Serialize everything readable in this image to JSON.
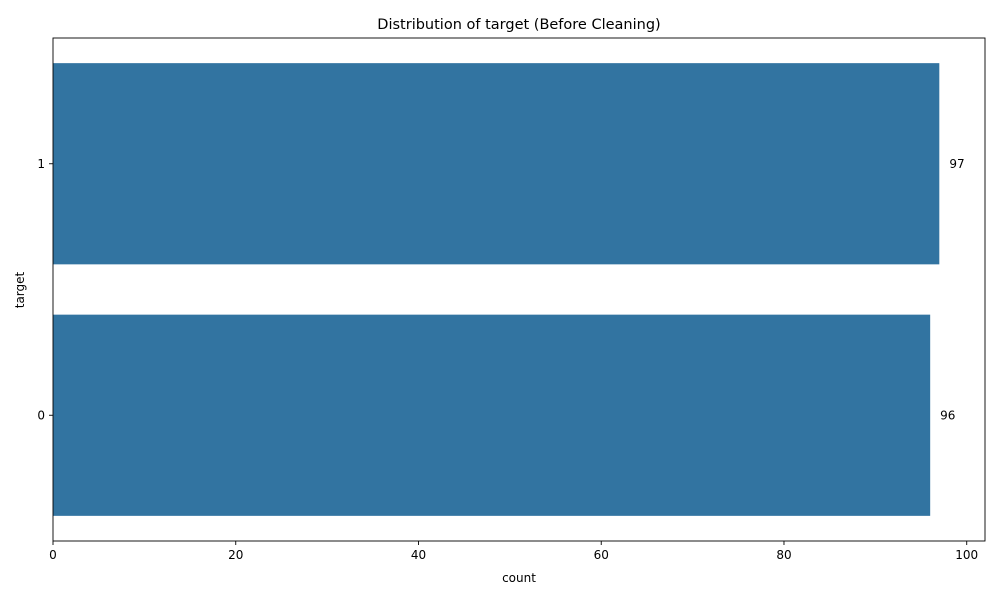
{
  "chart_data": {
    "type": "bar",
    "orientation": "horizontal",
    "title": "Distribution of target (Before Cleaning)",
    "xlabel": "count",
    "ylabel": "target",
    "categories": [
      "1",
      "0"
    ],
    "values": [
      97,
      96
    ],
    "data_labels": [
      "97",
      "96"
    ],
    "xlim": [
      0,
      102
    ],
    "xticks": [
      0,
      20,
      40,
      60,
      80,
      100
    ],
    "grid": false,
    "bar_color": "#3274a1"
  }
}
